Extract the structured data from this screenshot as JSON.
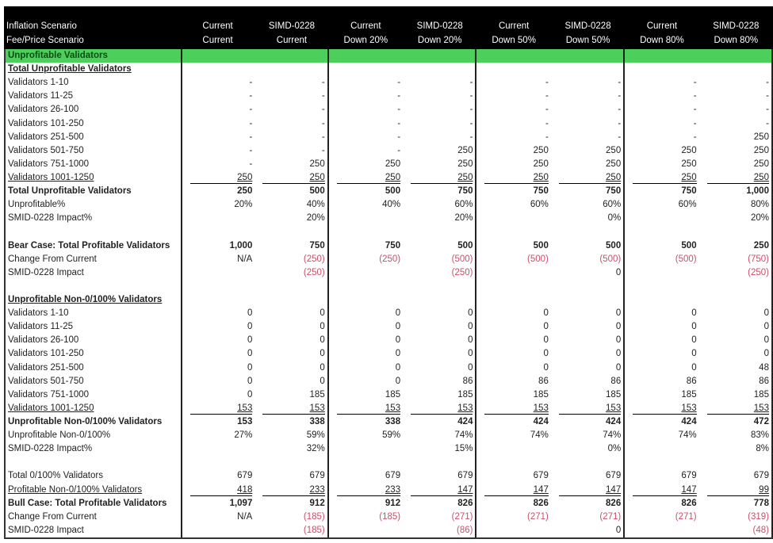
{
  "header": {
    "row1_label": "Inflation Scenario",
    "row2_label": "Fee/Price Scenario",
    "columns": [
      {
        "inflation": "Current",
        "fee": "Current"
      },
      {
        "inflation": "SIMD-0228",
        "fee": "Current"
      },
      {
        "inflation": "Current",
        "fee": "Down 20%"
      },
      {
        "inflation": "SIMD-0228",
        "fee": "Down 20%"
      },
      {
        "inflation": "Current",
        "fee": "Down 50%"
      },
      {
        "inflation": "SIMD-0228",
        "fee": "Down 50%"
      },
      {
        "inflation": "Current",
        "fee": "Down 80%"
      },
      {
        "inflation": "SIMD-0228",
        "fee": "Down 80%"
      }
    ]
  },
  "colors": {
    "header_bg": "#000000",
    "section_green": "#4dcf5b",
    "negative": "#c8506a"
  },
  "rows": [
    {
      "label": "Unprofitable Validators",
      "style": "green",
      "values": [
        "",
        "",
        "",
        "",
        "",
        "",
        "",
        ""
      ]
    },
    {
      "label": "Total Unprofitable Validators",
      "style": "bold-underline-label",
      "values": [
        "",
        "",
        "",
        "",
        "",
        "",
        "",
        ""
      ]
    },
    {
      "label": "Validators 1-10",
      "values": [
        "-",
        "-",
        "-",
        "-",
        "-",
        "-",
        "-",
        "-"
      ]
    },
    {
      "label": "Validators 11-25",
      "values": [
        "-",
        "-",
        "-",
        "-",
        "-",
        "-",
        "-",
        "-"
      ]
    },
    {
      "label": "Validators 26-100",
      "values": [
        "-",
        "-",
        "-",
        "-",
        "-",
        "-",
        "-",
        "-"
      ]
    },
    {
      "label": "Validators 101-250",
      "values": [
        "-",
        "-",
        "-",
        "-",
        "-",
        "-",
        "-",
        "-"
      ]
    },
    {
      "label": "Validators 251-500",
      "values": [
        "-",
        "-",
        "-",
        "-",
        "-",
        "-",
        "-",
        "250"
      ]
    },
    {
      "label": "Validators 501-750",
      "values": [
        "-",
        "-",
        "-",
        "250",
        "250",
        "250",
        "250",
        "250"
      ]
    },
    {
      "label": "Validators 751-1000",
      "values": [
        "-",
        "250",
        "250",
        "250",
        "250",
        "250",
        "250",
        "250"
      ]
    },
    {
      "label": "Validators 1001-1250",
      "style": "underline",
      "values": [
        "250",
        "250",
        "250",
        "250",
        "250",
        "250",
        "250",
        "250"
      ]
    },
    {
      "label": "Total Unprofitable Validators",
      "style": "bold",
      "values": [
        "250",
        "500",
        "500",
        "750",
        "750",
        "750",
        "750",
        "1,000"
      ]
    },
    {
      "label": "Unprofitable%",
      "values": [
        "20%",
        "40%",
        "40%",
        "60%",
        "60%",
        "60%",
        "60%",
        "80%"
      ]
    },
    {
      "label": "SMID-0228 Impact%",
      "values": [
        "",
        "20%",
        "",
        "20%",
        "",
        "0%",
        "",
        "20%"
      ]
    },
    {
      "label": "",
      "values": [
        "",
        "",
        "",
        "",
        "",
        "",
        "",
        ""
      ]
    },
    {
      "label": "Bear Case: Total Profitable Validators",
      "style": "bold",
      "values": [
        "1,000",
        "750",
        "750",
        "500",
        "500",
        "500",
        "500",
        "250"
      ]
    },
    {
      "label": "Change From Current",
      "values": [
        "N/A",
        "(250)",
        "(250)",
        "(500)",
        "(500)",
        "(500)",
        "(500)",
        "(750)"
      ]
    },
    {
      "label": "SMID-0228 Impact",
      "values": [
        "",
        "(250)",
        "",
        "(250)",
        "",
        "0",
        "",
        "(250)"
      ]
    },
    {
      "label": "",
      "values": [
        "",
        "",
        "",
        "",
        "",
        "",
        "",
        ""
      ]
    },
    {
      "label": "Unprofitable Non-0/100% Validators",
      "style": "bold-underline-label",
      "values": [
        "",
        "",
        "",
        "",
        "",
        "",
        "",
        ""
      ]
    },
    {
      "label": "Validators 1-10",
      "values": [
        "0",
        "0",
        "0",
        "0",
        "0",
        "0",
        "0",
        "0"
      ]
    },
    {
      "label": "Validators 11-25",
      "values": [
        "0",
        "0",
        "0",
        "0",
        "0",
        "0",
        "0",
        "0"
      ]
    },
    {
      "label": "Validators 26-100",
      "values": [
        "0",
        "0",
        "0",
        "0",
        "0",
        "0",
        "0",
        "0"
      ]
    },
    {
      "label": "Validators 101-250",
      "values": [
        "0",
        "0",
        "0",
        "0",
        "0",
        "0",
        "0",
        "0"
      ]
    },
    {
      "label": "Validators 251-500",
      "values": [
        "0",
        "0",
        "0",
        "0",
        "0",
        "0",
        "0",
        "48"
      ]
    },
    {
      "label": "Validators 501-750",
      "values": [
        "0",
        "0",
        "0",
        "86",
        "86",
        "86",
        "86",
        "86"
      ]
    },
    {
      "label": "Validators 751-1000",
      "values": [
        "0",
        "185",
        "185",
        "185",
        "185",
        "185",
        "185",
        "185"
      ]
    },
    {
      "label": "Validators 1001-1250",
      "style": "underline",
      "values": [
        "153",
        "153",
        "153",
        "153",
        "153",
        "153",
        "153",
        "153"
      ]
    },
    {
      "label": "Unprofitable Non-0/100% Validators",
      "style": "bold",
      "values": [
        "153",
        "338",
        "338",
        "424",
        "424",
        "424",
        "424",
        "472"
      ]
    },
    {
      "label": "Unprofitable Non-0/100%",
      "values": [
        "27%",
        "59%",
        "59%",
        "74%",
        "74%",
        "74%",
        "74%",
        "83%"
      ]
    },
    {
      "label": "SMID-0228 Impact%",
      "values": [
        "",
        "32%",
        "",
        "15%",
        "",
        "0%",
        "",
        "8%"
      ]
    },
    {
      "label": "",
      "values": [
        "",
        "",
        "",
        "",
        "",
        "",
        "",
        ""
      ]
    },
    {
      "label": "Total 0/100% Validators",
      "values": [
        "679",
        "679",
        "679",
        "679",
        "679",
        "679",
        "679",
        "679"
      ]
    },
    {
      "label": "Profitable Non-0/100% Validators",
      "style": "underline",
      "values": [
        "418",
        "233",
        "233",
        "147",
        "147",
        "147",
        "147",
        "99"
      ]
    },
    {
      "label": "Bull Case: Total Profitable Validators",
      "style": "bold",
      "values": [
        "1,097",
        "912",
        "912",
        "826",
        "826",
        "826",
        "826",
        "778"
      ]
    },
    {
      "label": "Change From Current",
      "values": [
        "N/A",
        "(185)",
        "(185)",
        "(271)",
        "(271)",
        "(271)",
        "(271)",
        "(319)"
      ]
    },
    {
      "label": "SMID-0228 Impact",
      "values": [
        "",
        "(185)",
        "",
        "(86)",
        "",
        "0",
        "",
        "(48)"
      ]
    }
  ]
}
